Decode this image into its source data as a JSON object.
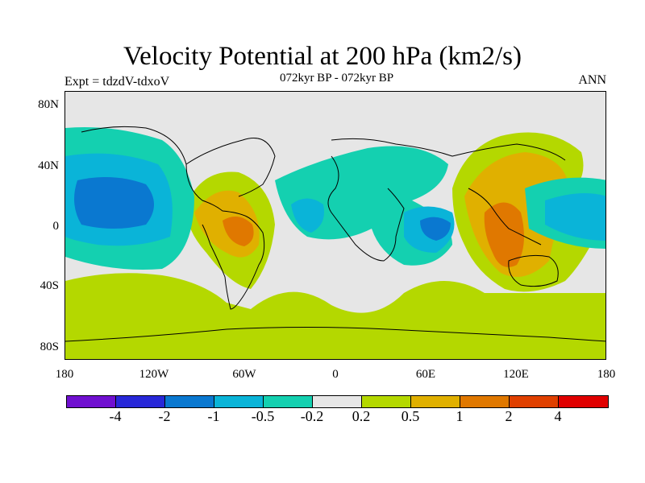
{
  "title": "Velocity Potential at 200 hPa (km2/s)",
  "subtitle": "072kyr BP - 072kyr BP",
  "left_label": "Expt = tdzdV-tdxoV",
  "right_label": "ANN",
  "map": {
    "projection": "cylindrical equidistant",
    "lon_range": [
      -180,
      180
    ],
    "lat_range": [
      -90,
      90
    ],
    "y_ticks": [
      "80N",
      "40N",
      "0",
      "40S",
      "80S"
    ],
    "x_ticks": [
      "180",
      "120W",
      "60W",
      "0",
      "60E",
      "120E",
      "180"
    ],
    "background_color": "#e6e6e6"
  },
  "colorbar": {
    "colors": [
      "#7010d0",
      "#2828d8",
      "#0a78d0",
      "#0ab4d8",
      "#14d0b0",
      "#e6e6e6",
      "#b4d800",
      "#e0b000",
      "#e07800",
      "#e04000",
      "#e00000"
    ],
    "labels": [
      "-4",
      "-2",
      "-1",
      "-0.5",
      "-0.2",
      "0.2",
      "0.5",
      "1",
      "2",
      "4"
    ]
  }
}
